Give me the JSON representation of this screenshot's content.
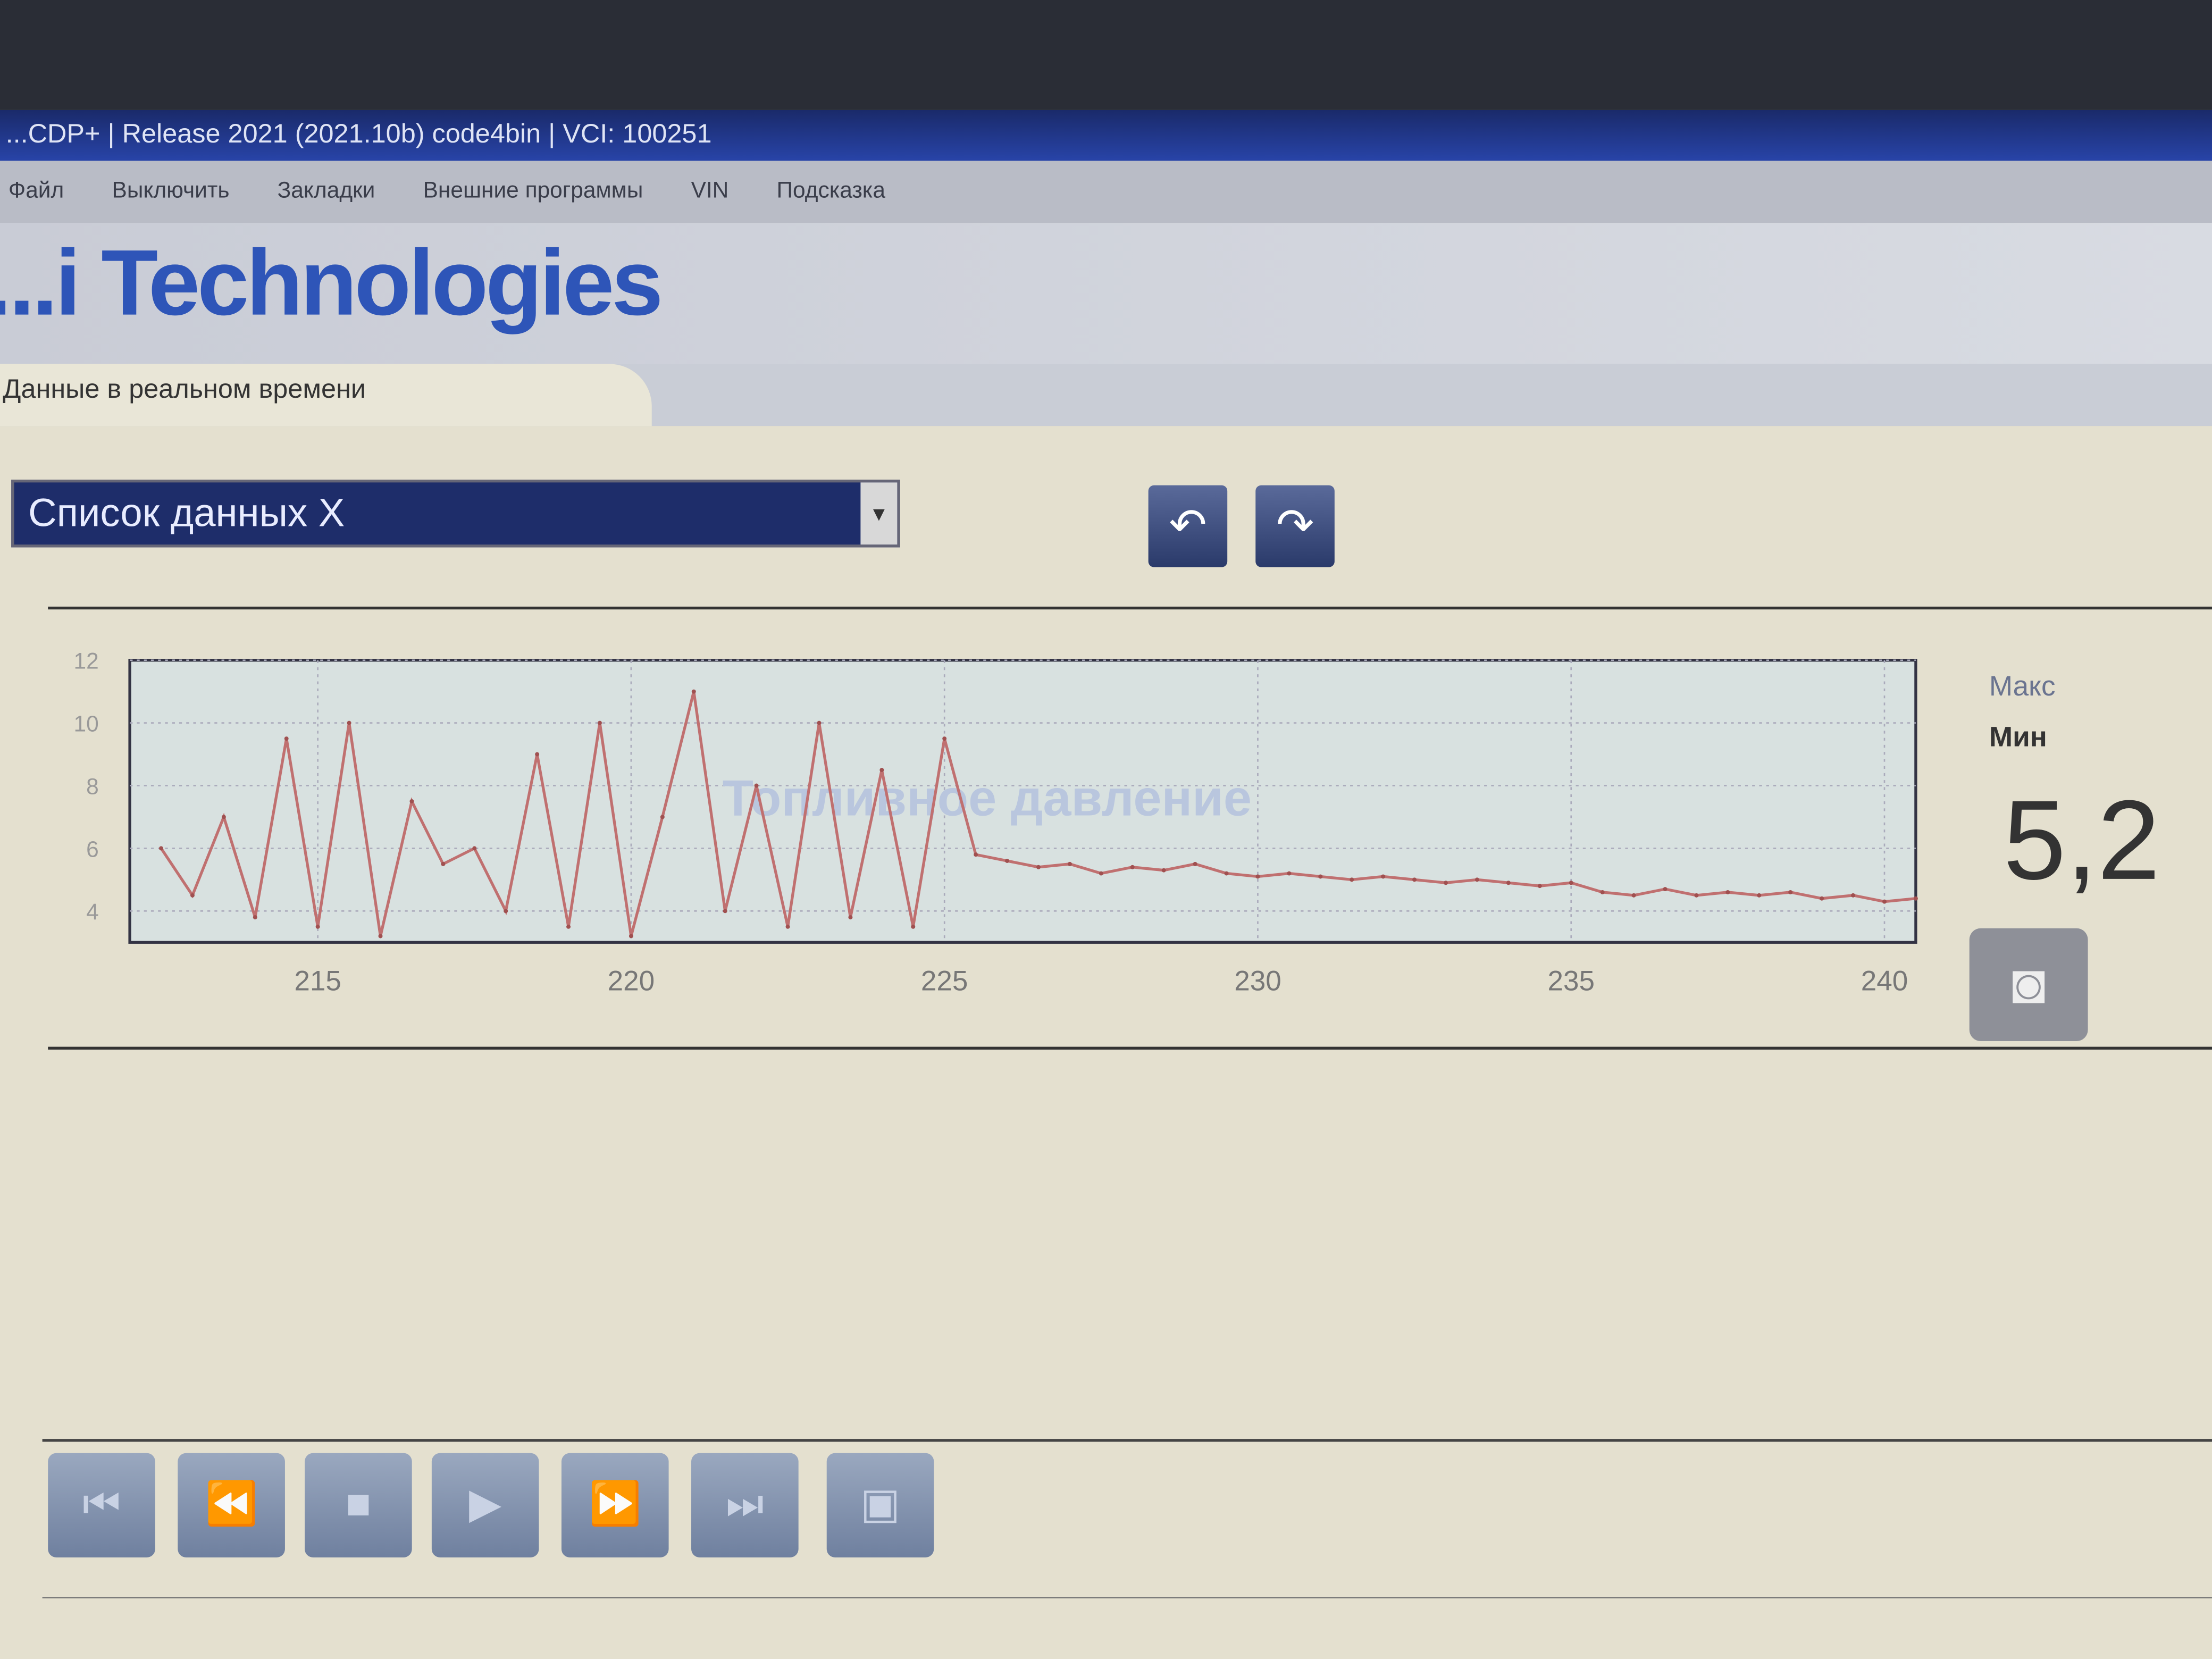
{
  "window": {
    "title": "...CDP+ | Release 2021 (2021.10b) code4bin | VCI: 100251"
  },
  "menu": [
    "Файл",
    "Выключить",
    "Закладки",
    "Внешние программы",
    "VIN",
    "Подсказка"
  ],
  "brand": "...i Technologies",
  "tab": "Данные в реальном времени",
  "data_list": {
    "selected": "Список данных X"
  },
  "nav": {
    "back_icon": "undo-arrow-icon",
    "forward_icon": "redo-arrow-icon"
  },
  "side": {
    "max_label": "Макс",
    "min_label": "Мин",
    "current_value": "5,2",
    "camera_icon": "camera-icon"
  },
  "playback": [
    "first-icon",
    "rewind-icon",
    "stop-icon",
    "play-icon",
    "fast-forward-icon",
    "last-icon",
    "save-icon"
  ],
  "chart_data": {
    "type": "line",
    "title": "Топливное давление",
    "xlim": [
      212,
      240.5
    ],
    "ylim": [
      3,
      12
    ],
    "xticks": [
      215,
      220,
      225,
      230,
      235,
      240
    ],
    "yticks": [
      4,
      6,
      8,
      10,
      12
    ],
    "grid": true,
    "color": "#c07070",
    "x": [
      212.5,
      213,
      213.5,
      214,
      214.5,
      215,
      215.5,
      216,
      216.5,
      217,
      217.5,
      218,
      218.5,
      219,
      219.5,
      220,
      220.5,
      221,
      221.5,
      222,
      222.5,
      223,
      223.5,
      224,
      224.5,
      225,
      225.5,
      226,
      226.5,
      227,
      227.5,
      228,
      228.5,
      229,
      229.5,
      230,
      230.5,
      231,
      231.5,
      232,
      232.5,
      233,
      233.5,
      234,
      234.5,
      235,
      235.5,
      236,
      236.5,
      237,
      237.5,
      238,
      238.5,
      239,
      239.5,
      240,
      240.5
    ],
    "y": [
      6,
      4.5,
      7,
      3.8,
      9.5,
      3.5,
      10,
      3.2,
      7.5,
      5.5,
      6,
      4,
      9,
      3.5,
      10,
      3.2,
      7,
      11,
      4,
      8,
      3.5,
      10,
      3.8,
      8.5,
      3.5,
      9.5,
      5.8,
      5.6,
      5.4,
      5.5,
      5.2,
      5.4,
      5.3,
      5.5,
      5.2,
      5.1,
      5.2,
      5.1,
      5.0,
      5.1,
      5.0,
      4.9,
      5.0,
      4.9,
      4.8,
      4.9,
      4.6,
      4.5,
      4.7,
      4.5,
      4.6,
      4.5,
      4.6,
      4.4,
      4.5,
      4.3,
      4.4
    ]
  }
}
